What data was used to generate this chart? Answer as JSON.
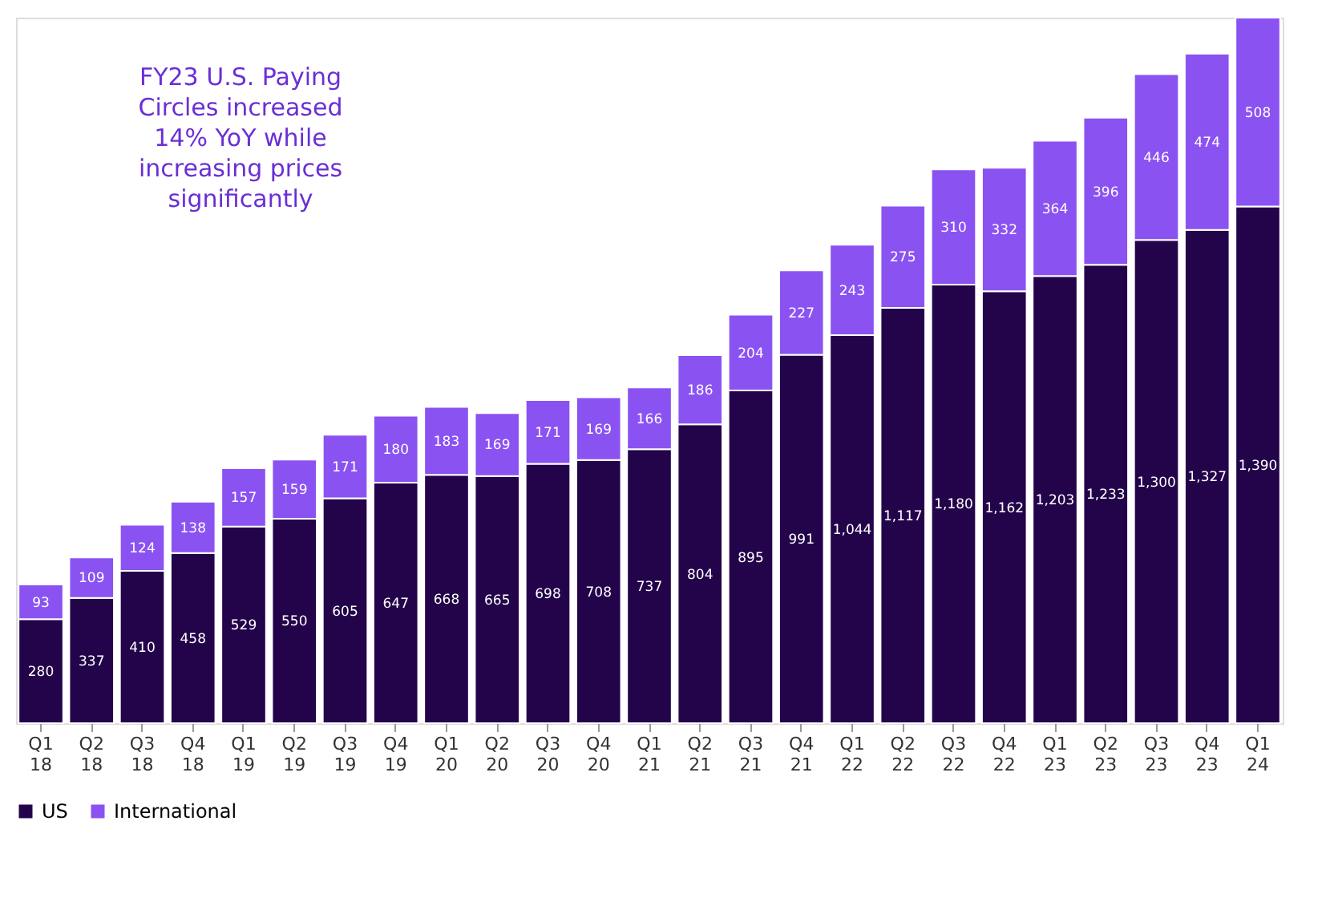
{
  "chart_data": {
    "type": "bar",
    "stacked": true,
    "legend": "bottom",
    "categories": [
      "Q1 18",
      "Q2 18",
      "Q3 18",
      "Q4 18",
      "Q1 19",
      "Q2 19",
      "Q3 19",
      "Q4 19",
      "Q1 20",
      "Q2 20",
      "Q3 20",
      "Q4 20",
      "Q1 21",
      "Q2 21",
      "Q3 21",
      "Q4 21",
      "Q1 22",
      "Q2 22",
      "Q3 22",
      "Q4 22",
      "Q1 23",
      "Q2 23",
      "Q3 23",
      "Q4 23",
      "Q1 24"
    ],
    "series": [
      {
        "name": "US",
        "color": "#23044a",
        "values": [
          280,
          337,
          410,
          458,
          529,
          550,
          605,
          647,
          668,
          665,
          698,
          708,
          737,
          804,
          895,
          991,
          1044,
          1117,
          1180,
          1162,
          1203,
          1233,
          1300,
          1327,
          1390
        ],
        "value_labels": [
          "280",
          "337",
          "410",
          "458",
          "529",
          "550",
          "605",
          "647",
          "668",
          "665",
          "698",
          "708",
          "737",
          "804",
          "895",
          "991",
          "1,044",
          "1,117",
          "1,180",
          "1,162",
          "1,203",
          "1,233",
          "1,300",
          "1,327",
          "1,390"
        ]
      },
      {
        "name": "International",
        "color": "#8b52f2",
        "values": [
          93,
          109,
          124,
          138,
          157,
          159,
          171,
          180,
          183,
          169,
          171,
          169,
          166,
          186,
          204,
          227,
          243,
          275,
          310,
          332,
          364,
          396,
          446,
          474,
          508
        ],
        "value_labels": [
          "93",
          "109",
          "124",
          "138",
          "157",
          "159",
          "171",
          "180",
          "183",
          "169",
          "171",
          "169",
          "166",
          "186",
          "204",
          "227",
          "243",
          "275",
          "310",
          "332",
          "364",
          "396",
          "446",
          "474",
          "508"
        ]
      }
    ],
    "annotations": [
      "FY23 U.S. Paying Circles increased 14% YoY while increasing prices significantly"
    ]
  }
}
